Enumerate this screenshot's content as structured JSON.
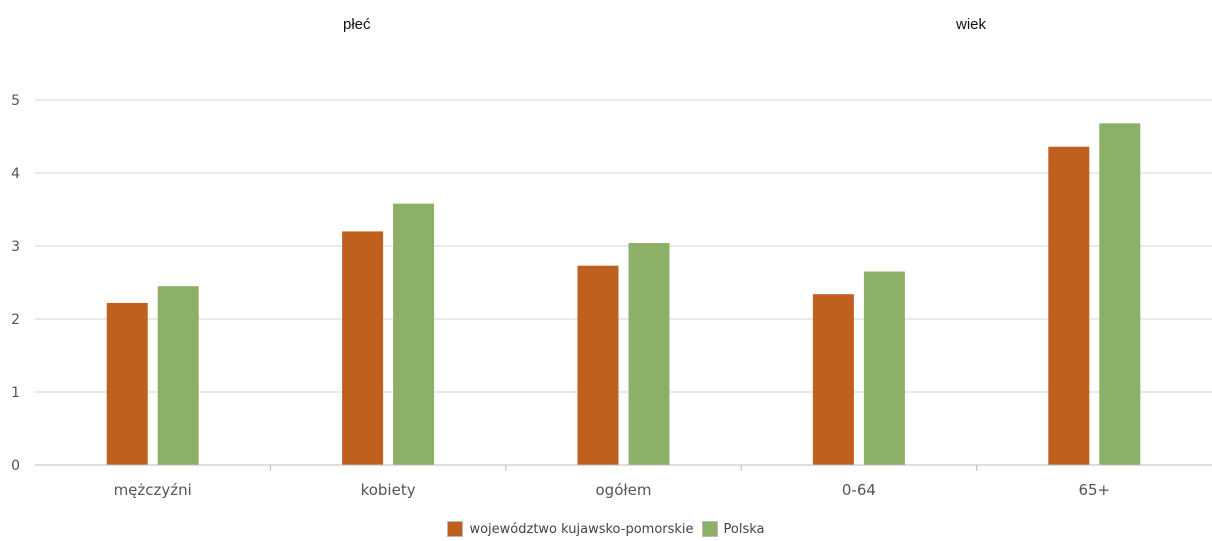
{
  "group_labels": {
    "plec": "płeć",
    "wiek": "wiek"
  },
  "legend": [
    {
      "label": "województwo kujawsko-pomorskie",
      "color": "#c0601e"
    },
    {
      "label": "Polska",
      "color": "#8db068"
    }
  ],
  "chart_data": {
    "type": "bar",
    "categories": [
      "mężczyźni",
      "kobiety",
      "ogółem",
      "0-64",
      "65+"
    ],
    "series": [
      {
        "name": "województwo kujawsko-pomorskie",
        "color": "#c0601e",
        "values": [
          2.22,
          3.2,
          2.73,
          2.34,
          4.36
        ]
      },
      {
        "name": "Polska",
        "color": "#8db068",
        "values": [
          2.45,
          3.58,
          3.04,
          2.65,
          4.68
        ]
      }
    ],
    "ylim": [
      0,
      5
    ],
    "yticks": [
      0,
      1,
      2,
      3,
      4,
      5
    ],
    "grid": true,
    "legend_position": "bottom"
  }
}
